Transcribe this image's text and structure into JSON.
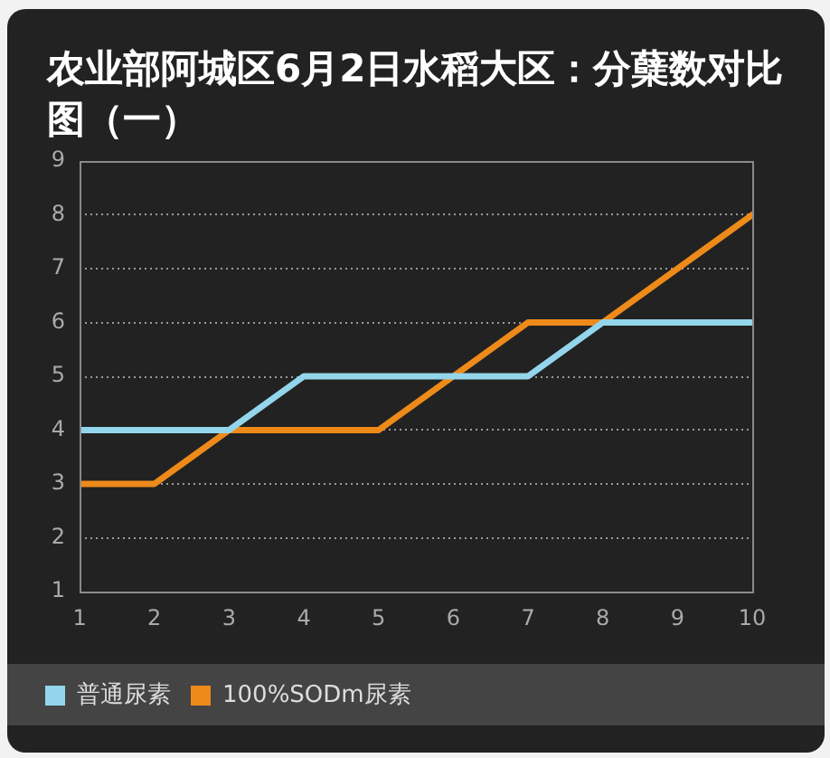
{
  "chart_data": {
    "type": "line",
    "title": "农业部阿城区6月2日水稻大区：分蘖数对比图（一）",
    "x": [
      1,
      2,
      3,
      4,
      5,
      6,
      7,
      8,
      9,
      10
    ],
    "series": [
      {
        "name": "普通尿素",
        "color": "#93d6ec",
        "values": [
          4,
          4,
          4,
          5,
          5,
          5,
          5,
          6,
          6,
          6
        ]
      },
      {
        "name": "100%SODm尿素",
        "color": "#ee8a1a",
        "values": [
          3,
          3,
          4,
          4,
          4,
          5,
          6,
          6,
          7,
          8
        ]
      }
    ],
    "xlim": [
      1,
      10
    ],
    "xticks": [
      1,
      2,
      3,
      4,
      5,
      6,
      7,
      8,
      9,
      10
    ],
    "ylim": [
      1,
      9
    ],
    "yticks": [
      1,
      2,
      3,
      4,
      5,
      6,
      7,
      8,
      9
    ],
    "grid": "y",
    "legend": "bottom",
    "marker": "none",
    "line_style": "solid"
  }
}
